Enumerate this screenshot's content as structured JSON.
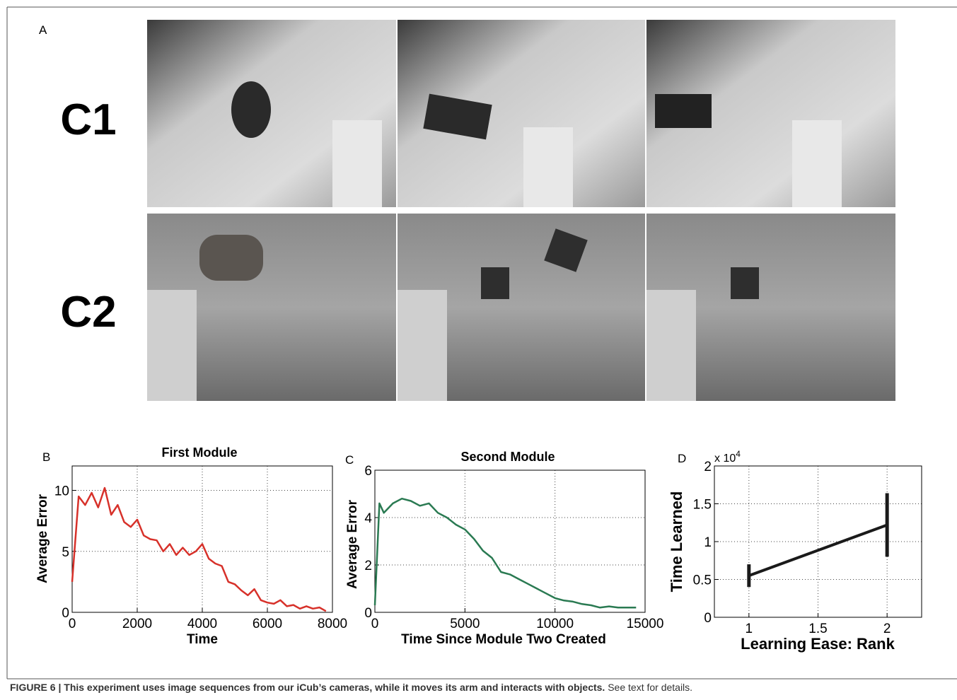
{
  "figure_label": "A",
  "row_labels": [
    "C1",
    "C2"
  ],
  "caption": {
    "bold": "FIGURE 6 | This experiment uses image sequences from our iCub’s cameras, while it moves its arm and interacts with objects.",
    "rest": "See text for details."
  },
  "chart_data": [
    {
      "type": "line",
      "panel_label": "B",
      "title": "First Module",
      "x_label": "Time",
      "y_label": "Average Error",
      "x": [
        0,
        200,
        400,
        600,
        800,
        1000,
        1200,
        1400,
        1600,
        1800,
        2000,
        2200,
        2400,
        2600,
        2800,
        3000,
        3200,
        3400,
        3600,
        3800,
        4000,
        4200,
        4400,
        4600,
        4800,
        5000,
        5200,
        5400,
        5600,
        5800,
        6000,
        6200,
        6400,
        6600,
        6800,
        7000,
        7200,
        7400,
        7600,
        7800
      ],
      "series": [
        {
          "color": "#d7312a",
          "values": [
            2.5,
            9.5,
            8.8,
            9.8,
            8.6,
            10.2,
            8.0,
            8.8,
            7.4,
            7.0,
            7.6,
            6.3,
            6.0,
            5.9,
            5.0,
            5.6,
            4.7,
            5.3,
            4.7,
            5.0,
            5.6,
            4.4,
            4.0,
            3.8,
            2.5,
            2.3,
            1.8,
            1.4,
            1.9,
            1.0,
            0.8,
            0.7,
            1.0,
            0.5,
            0.6,
            0.3,
            0.5,
            0.3,
            0.4,
            0.1
          ]
        }
      ],
      "xlim": [
        0,
        8000
      ],
      "xticks": [
        0,
        2000,
        4000,
        6000,
        8000
      ],
      "ylim": [
        0,
        12
      ],
      "yticks": [
        0,
        5,
        10
      ],
      "grid": true
    },
    {
      "type": "line",
      "panel_label": "C",
      "title": "Second Module",
      "x_label": "Time Since Module Two Created",
      "y_label": "Average Error",
      "x": [
        0,
        250,
        500,
        1000,
        1500,
        2000,
        2500,
        3000,
        3500,
        4000,
        4500,
        5000,
        5500,
        6000,
        6500,
        7000,
        7500,
        8000,
        8500,
        9000,
        9500,
        10000,
        10500,
        11000,
        11500,
        12000,
        12500,
        13000,
        13500,
        14000,
        14500
      ],
      "series": [
        {
          "color": "#2a7a52",
          "values": [
            0.3,
            4.6,
            4.2,
            4.6,
            4.8,
            4.7,
            4.5,
            4.6,
            4.2,
            4.0,
            3.7,
            3.5,
            3.1,
            2.6,
            2.3,
            1.7,
            1.6,
            1.4,
            1.2,
            1.0,
            0.8,
            0.6,
            0.5,
            0.45,
            0.35,
            0.3,
            0.2,
            0.25,
            0.2,
            0.2,
            0.2
          ]
        }
      ],
      "xlim": [
        0,
        15000
      ],
      "xticks": [
        0,
        5000,
        10000,
        15000
      ],
      "ylim": [
        0,
        6
      ],
      "yticks": [
        0,
        2,
        4,
        6
      ],
      "grid": true
    },
    {
      "type": "errorbar",
      "panel_label": "D",
      "x_label": "Learning Ease: Rank",
      "y_label": "Time Learned",
      "y_multiplier": {
        "base": "x 10",
        "exponent": "4"
      },
      "x": [
        1,
        2
      ],
      "series": [
        {
          "color": "#1a1a1a",
          "values": [
            0.55,
            1.22
          ],
          "errors": [
            0.15,
            0.42
          ]
        }
      ],
      "xlim": [
        0.75,
        2.25
      ],
      "xticks": [
        1,
        1.5,
        2
      ],
      "ylim": [
        0,
        2
      ],
      "yticks": [
        0,
        0.5,
        1,
        1.5,
        2
      ],
      "grid": true
    }
  ]
}
